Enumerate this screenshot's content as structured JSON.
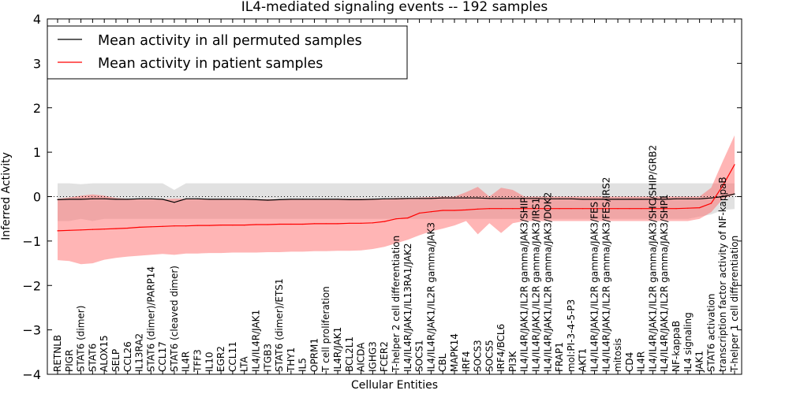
{
  "chart_data": {
    "type": "line",
    "title": "IL4-mediated signaling events -- 192 samples",
    "xlabel": "Cellular Entities",
    "ylabel": "Inferred Activity",
    "ylim": [
      -4,
      4
    ],
    "yticks": [
      -4,
      -3,
      -2,
      -1,
      0,
      1,
      2,
      3,
      4
    ],
    "ytick_labels": [
      "−4",
      "−3",
      "−2",
      "−1",
      "0",
      "1",
      "2",
      "3",
      "4"
    ],
    "legend_position": "top-left",
    "colors": {
      "permuted": "#000000",
      "patient": "#ff0000",
      "permuted_band": "#c8c8c8",
      "patient_band": "#ff6b6b"
    },
    "categories": [
      "RETNLB",
      "PIGR",
      "STAT6 (dimer)",
      "STAT6",
      "ALOX15",
      "SELP",
      "CCL26",
      "IL13RA2",
      "STAT6 (dimer)/PARP14",
      "CCL17",
      "STAT6 (cleaved dimer)",
      "IL4R",
      "TFF3",
      "IL10",
      "EGR2",
      "CCL11",
      "LTA",
      "IL4/IL4R/JAK1",
      "ITGB3",
      "STAT6 (dimer)/ETS1",
      "THY1",
      "IL5",
      "OPRM1",
      "T cell proliferation",
      "IL4R/JAK1",
      "BCL2L1",
      "AICDA",
      "IGHG3",
      "FCER2",
      "T-helper 2 cell differentiation",
      "IL4/IL4R/JAK1/IL13RA1/JAK2",
      "SOCS1",
      "IL4/IL4R/JAK1/IL2R gamma/JAK3",
      "CBL",
      "MAPK14",
      "IRF4",
      "SOCS3",
      "SOCS5",
      "IRF4/BCL6",
      "PI3K",
      "IL4/IL4R/JAK1/IL2R gamma/JAK3/SHIP",
      "IL4/IL4R/JAK1/IL2R gamma/JAK3/IRS1",
      "IL4/IL4R/JAK1/IL2R gamma/JAK3/DOK2",
      "FRAP1",
      "mol:PI-3-4-5-P3",
      "AKT1",
      "IL4/IL4R/JAK1/IL2R gamma/JAK3/FES",
      "IL4/IL4R/JAK1/IL2R gamma/JAK3/FES/IRS2",
      "mitosis",
      "CD4",
      "IL4R",
      "IL4/IL4R/JAK1/IL2R gamma/JAK3/SHC/SHIP/GRB2",
      "IL4/IL4R/JAK1/IL2R gamma/JAK3/SHP1",
      "NF-kappaB",
      "IL4 signaling",
      "JAK1",
      "STAT6 activation",
      "transcription factor activity of NF-kappaB",
      "T-helper 1 cell differentiation"
    ],
    "series": [
      {
        "name": "Mean activity in all permuted samples",
        "color": "#000000",
        "values": [
          -0.07,
          -0.06,
          -0.06,
          -0.05,
          -0.05,
          -0.06,
          -0.06,
          -0.05,
          -0.05,
          -0.06,
          -0.13,
          -0.05,
          -0.05,
          -0.06,
          -0.06,
          -0.06,
          -0.06,
          -0.07,
          -0.08,
          -0.07,
          -0.06,
          -0.06,
          -0.06,
          -0.06,
          -0.06,
          -0.07,
          -0.07,
          -0.06,
          -0.05,
          -0.05,
          -0.04,
          -0.04,
          -0.04,
          -0.03,
          -0.03,
          -0.03,
          -0.03,
          -0.04,
          -0.04,
          -0.04,
          -0.04,
          -0.04,
          -0.05,
          -0.05,
          -0.05,
          -0.06,
          -0.06,
          -0.06,
          -0.06,
          -0.06,
          -0.06,
          -0.06,
          -0.06,
          -0.05,
          -0.05,
          -0.05,
          -0.03,
          0.0,
          0.06
        ],
        "lower": [
          -0.55,
          -0.55,
          -0.5,
          -0.55,
          -0.5,
          -0.5,
          -0.5,
          -0.5,
          -0.5,
          -0.5,
          -0.5,
          -0.5,
          -0.5,
          -0.5,
          -0.5,
          -0.5,
          -0.5,
          -0.5,
          -0.5,
          -0.5,
          -0.5,
          -0.5,
          -0.5,
          -0.5,
          -0.5,
          -0.5,
          -0.5,
          -0.5,
          -0.5,
          -0.5,
          -0.5,
          -0.5,
          -0.5,
          -0.5,
          -0.5,
          -0.5,
          -0.5,
          -0.5,
          -0.5,
          -0.5,
          -0.5,
          -0.5,
          -0.5,
          -0.5,
          -0.5,
          -0.5,
          -0.5,
          -0.5,
          -0.5,
          -0.5,
          -0.5,
          -0.5,
          -0.5,
          -0.5,
          -0.5,
          -0.45,
          -0.4,
          -0.3,
          -0.28
        ],
        "upper": [
          0.3,
          0.3,
          0.28,
          0.3,
          0.3,
          0.3,
          0.3,
          0.3,
          0.3,
          0.3,
          0.15,
          0.3,
          0.3,
          0.3,
          0.3,
          0.3,
          0.3,
          0.3,
          0.3,
          0.3,
          0.3,
          0.3,
          0.3,
          0.3,
          0.3,
          0.3,
          0.3,
          0.3,
          0.3,
          0.3,
          0.3,
          0.3,
          0.3,
          0.3,
          0.3,
          0.3,
          0.3,
          0.3,
          0.3,
          0.3,
          0.3,
          0.3,
          0.3,
          0.3,
          0.3,
          0.3,
          0.3,
          0.3,
          0.3,
          0.3,
          0.3,
          0.3,
          0.3,
          0.3,
          0.3,
          0.3,
          0.3,
          0.3,
          0.3
        ]
      },
      {
        "name": "Mean activity in patient samples",
        "color": "#ff0000",
        "values": [
          -0.77,
          -0.76,
          -0.75,
          -0.74,
          -0.73,
          -0.72,
          -0.71,
          -0.69,
          -0.68,
          -0.67,
          -0.66,
          -0.66,
          -0.65,
          -0.65,
          -0.64,
          -0.64,
          -0.64,
          -0.63,
          -0.63,
          -0.62,
          -0.62,
          -0.62,
          -0.61,
          -0.61,
          -0.61,
          -0.6,
          -0.6,
          -0.59,
          -0.56,
          -0.5,
          -0.48,
          -0.37,
          -0.34,
          -0.31,
          -0.31,
          -0.3,
          -0.28,
          -0.27,
          -0.27,
          -0.27,
          -0.27,
          -0.27,
          -0.27,
          -0.27,
          -0.27,
          -0.27,
          -0.27,
          -0.27,
          -0.27,
          -0.27,
          -0.27,
          -0.27,
          -0.27,
          -0.27,
          -0.26,
          -0.25,
          -0.15,
          0.25,
          0.72
        ],
        "lower": [
          -1.43,
          -1.45,
          -1.52,
          -1.5,
          -1.42,
          -1.38,
          -1.35,
          -1.33,
          -1.31,
          -1.29,
          -1.31,
          -1.28,
          -1.28,
          -1.27,
          -1.27,
          -1.26,
          -1.26,
          -1.26,
          -1.25,
          -1.25,
          -1.24,
          -1.24,
          -1.23,
          -1.23,
          -1.22,
          -1.22,
          -1.21,
          -1.18,
          -1.13,
          -1.05,
          -0.97,
          -0.87,
          -0.78,
          -0.72,
          -0.65,
          -0.55,
          -0.85,
          -0.6,
          -0.82,
          -0.6,
          -0.55,
          -0.55,
          -0.55,
          -0.55,
          -0.55,
          -0.55,
          -0.55,
          -0.55,
          -0.55,
          -0.55,
          -0.55,
          -0.55,
          -0.55,
          -0.55,
          -0.55,
          -0.5,
          -0.35,
          -0.05,
          0.05
        ],
        "upper": [
          -0.05,
          -0.02,
          0.02,
          0.05,
          0.02,
          -0.03,
          -0.05,
          -0.06,
          -0.05,
          -0.06,
          -0.05,
          -0.05,
          -0.06,
          -0.06,
          -0.06,
          -0.06,
          -0.06,
          -0.06,
          -0.06,
          -0.06,
          -0.06,
          -0.06,
          -0.06,
          -0.06,
          -0.05,
          -0.05,
          -0.05,
          -0.05,
          -0.05,
          -0.03,
          -0.03,
          -0.02,
          -0.01,
          0.0,
          0.0,
          0.1,
          0.22,
          0.0,
          0.2,
          0.15,
          0.0,
          0.0,
          0.0,
          0.0,
          0.0,
          0.0,
          0.0,
          0.0,
          0.0,
          0.0,
          0.0,
          0.0,
          0.0,
          0.0,
          0.0,
          0.0,
          0.2,
          0.8,
          1.38
        ]
      }
    ],
    "reference_line": {
      "y": 0,
      "style": "dotted"
    }
  }
}
